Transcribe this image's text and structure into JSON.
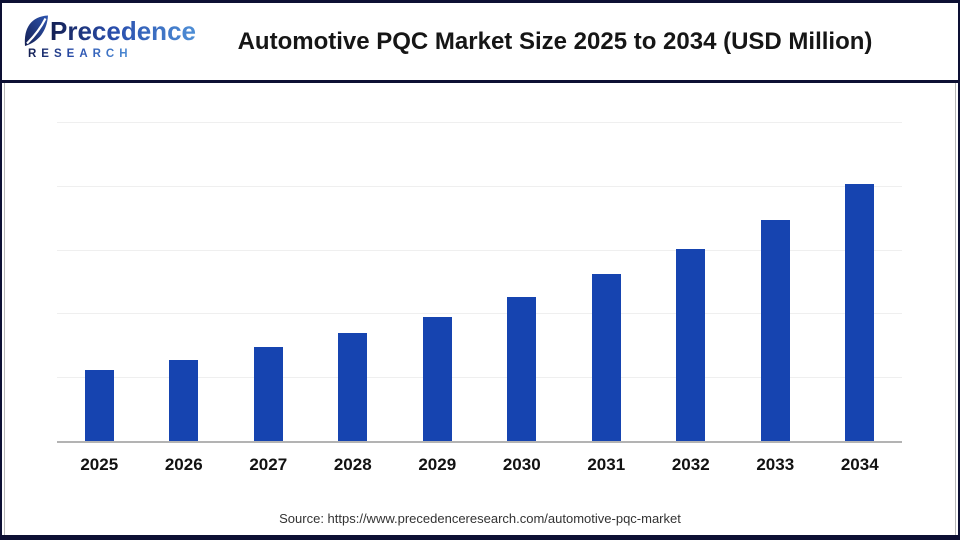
{
  "brand": {
    "name": "Precedence",
    "subname": "RESEARCH"
  },
  "header": {
    "title": "Automotive PQC Market Size 2025 to 2034 (USD Million)"
  },
  "footer": {
    "source": "Source: https://www.precedenceresearch.com/automotive-pqc-market"
  },
  "colors": {
    "bar": "#1644b0",
    "frame_navy": "#0d1034",
    "gridline": "#efefef",
    "axis_baseline": "#b3b3b3",
    "logo_gradient_start": "#141f52",
    "logo_gradient_end": "#4e8fd6",
    "title_text": "#161616",
    "source_text": "#333333"
  },
  "chart_data": {
    "type": "bar",
    "title": "Automotive PQC Market Size 2025 to 2034 (USD Million)",
    "categories": [
      "2025",
      "2026",
      "2027",
      "2028",
      "2029",
      "2030",
      "2031",
      "2032",
      "2033",
      "2034"
    ],
    "values": [
      1.1,
      1.27,
      1.46,
      1.68,
      1.94,
      2.24,
      2.6,
      2.99,
      3.45,
      4.0
    ],
    "value_units": "gridline units (y-axis has no tick labels; values estimated from unlabeled horizontal gridlines, spacing = 1 unit)",
    "xlabel": "",
    "ylabel": "",
    "ylim": [
      0,
      5
    ],
    "grid": "horizontal-only",
    "legend": false,
    "data_labels": false,
    "bar_color": "#1644b0"
  }
}
